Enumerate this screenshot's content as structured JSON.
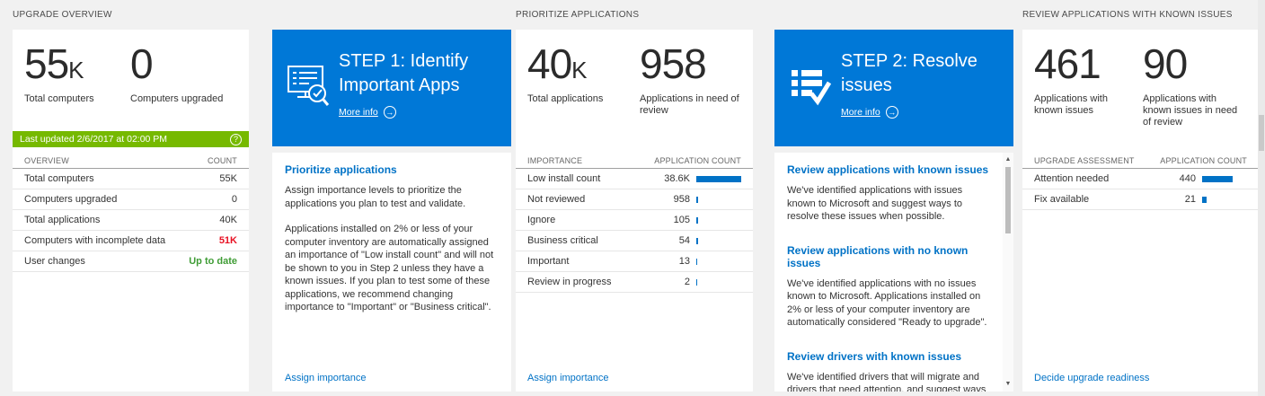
{
  "colors": {
    "accent_blue": "#0078d7",
    "link_blue": "#0072c6",
    "bar_blue": "#0072c6",
    "update_green": "#76b900",
    "alert_red": "#e81123",
    "ok_green": "#3f9c35"
  },
  "icons": {
    "help": "?",
    "more_info_arrow": "→",
    "scroll_up": "▲",
    "scroll_down": "▼"
  },
  "overview": {
    "header": "UPGRADE OVERVIEW",
    "stats": [
      {
        "value": "55",
        "suffix": "K",
        "label": "Total computers"
      },
      {
        "value": "0",
        "suffix": "",
        "label": "Computers upgraded"
      }
    ],
    "last_updated": "Last updated 2/6/2017 at 02:00 PM",
    "table": {
      "col1": "OVERVIEW",
      "col2": "COUNT",
      "rows": [
        {
          "label": "Total computers",
          "value": "55K",
          "style": "normal"
        },
        {
          "label": "Computers upgraded",
          "value": "0",
          "style": "normal"
        },
        {
          "label": "Total applications",
          "value": "40K",
          "style": "normal"
        },
        {
          "label": "Computers with incomplete data",
          "value": "51K",
          "style": "red"
        },
        {
          "label": "User changes",
          "value": "Up to date",
          "style": "green"
        }
      ]
    }
  },
  "step1": {
    "title": "STEP 1: Identify Important Apps",
    "more_info": "More info",
    "panel": {
      "heading": "Prioritize applications",
      "para1": "Assign importance levels to prioritize the applications you plan to test and validate.",
      "para2": "Applications installed on 2% or less of your computer inventory are automatically assigned an importance of \"Low install count\" and will not be shown to you in Step 2 unless they have a known issues. If you plan to test some of these applications, we recommend changing importance to \"Important\" or \"Business critical\".",
      "action": "Assign importance"
    }
  },
  "prioritize": {
    "header": "PRIORITIZE APPLICATIONS",
    "stats": [
      {
        "value": "40",
        "suffix": "K",
        "label": "Total applications"
      },
      {
        "value": "958",
        "suffix": "",
        "label": "Applications in need of review"
      }
    ],
    "table": {
      "col1": "IMPORTANCE",
      "col2": "APPLICATION COUNT",
      "rows": [
        {
          "label": "Low install count",
          "value": "38.6K",
          "bar": 100
        },
        {
          "label": "Not reviewed",
          "value": "958",
          "bar": 4
        },
        {
          "label": "Ignore",
          "value": "105",
          "bar": 3
        },
        {
          "label": "Business critical",
          "value": "54",
          "bar": 3
        },
        {
          "label": "Important",
          "value": "13",
          "bar": 2
        },
        {
          "label": "Review in progress",
          "value": "2",
          "bar": 2
        }
      ]
    }
  },
  "step2": {
    "title": "STEP 2: Resolve issues",
    "more_info": "More info",
    "panel": {
      "sections": [
        {
          "heading": "Review applications with known issues",
          "body": "We've identified applications with issues known to Microsoft and suggest ways to resolve these issues when possible."
        },
        {
          "heading": "Review applications with no known issues",
          "body": "We've identified applications with no issues known to Microsoft. Applications installed on 2% or less of your computer inventory are automatically considered \"Ready to upgrade\"."
        },
        {
          "heading": "Review drivers with known issues",
          "body": "We've identified drivers that will migrate and drivers that need attention, and suggest ways to resolve these issues when available."
        }
      ]
    }
  },
  "review": {
    "header": "REVIEW APPLICATIONS WITH KNOWN ISSUES",
    "stats": [
      {
        "value": "461",
        "suffix": "",
        "label": "Applications with known issues"
      },
      {
        "value": "90",
        "suffix": "",
        "label": "Applications with known issues in need of review"
      }
    ],
    "table": {
      "col1": "UPGRADE ASSESSMENT",
      "col2": "APPLICATION COUNT",
      "rows": [
        {
          "label": "Attention needed",
          "value": "440",
          "bar": 68
        },
        {
          "label": "Fix available",
          "value": "21",
          "bar": 9
        }
      ]
    },
    "action": "Decide upgrade readiness"
  }
}
